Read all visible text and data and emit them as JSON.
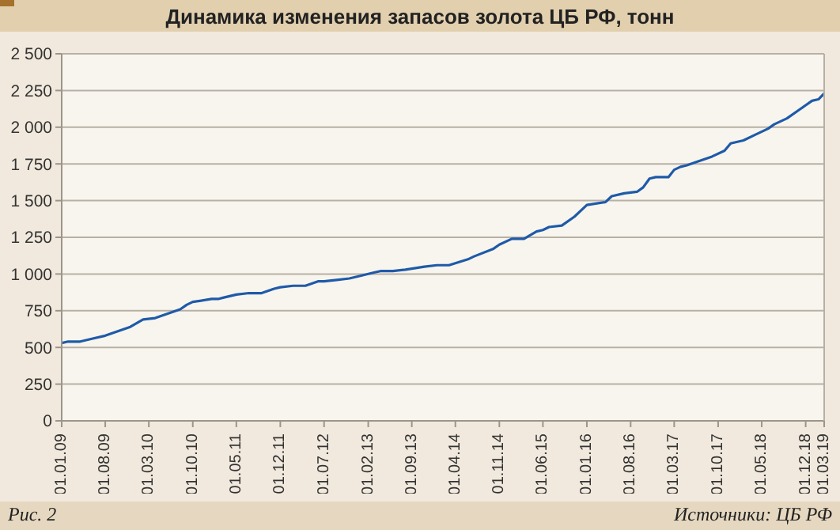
{
  "chart_data": {
    "type": "line",
    "title": "Динамика изменения запасов золота ЦБ РФ, тонн",
    "annotations": [
      "Рис. 2",
      "Источники: ЦБ РФ"
    ],
    "x": [
      "2009-01",
      "2009-02",
      "2009-04",
      "2009-06",
      "2009-08",
      "2009-10",
      "2009-12",
      "2010-02",
      "2010-04",
      "2010-06",
      "2010-08",
      "2010-09",
      "2010-10",
      "2011-01",
      "2011-02",
      "2011-03",
      "2011-05",
      "2011-07",
      "2011-09",
      "2011-11",
      "2011-12",
      "2012-02",
      "2012-04",
      "2012-06",
      "2012-07",
      "2012-09",
      "2012-11",
      "2013-01",
      "2013-03",
      "2013-04",
      "2013-06",
      "2013-08",
      "2013-11",
      "2014-01",
      "2014-03",
      "2014-06",
      "2014-07",
      "2014-10",
      "2014-11",
      "2015-01",
      "2015-03",
      "2015-05",
      "2015-06",
      "2015-07",
      "2015-09",
      "2015-11",
      "2016-01",
      "2016-04",
      "2016-05",
      "2016-07",
      "2016-09",
      "2016-10",
      "2016-11",
      "2016-12",
      "2017-02",
      "2017-03",
      "2017-04",
      "2017-05",
      "2017-07",
      "2017-09",
      "2017-11",
      "2017-12",
      "2018-02",
      "2018-04",
      "2018-06",
      "2018-07",
      "2018-09",
      "2018-11",
      "2019-01",
      "2019-02",
      "2019-03"
    ],
    "series": [
      {
        "color": "#1f5aa8",
        "values": [
          530,
          540,
          540,
          560,
          580,
          610,
          640,
          690,
          700,
          730,
          760,
          790,
          810,
          830,
          830,
          840,
          860,
          870,
          870,
          900,
          910,
          920,
          920,
          950,
          950,
          960,
          970,
          990,
          1010,
          1020,
          1020,
          1030,
          1050,
          1060,
          1060,
          1100,
          1120,
          1170,
          1200,
          1240,
          1240,
          1290,
          1300,
          1320,
          1330,
          1390,
          1470,
          1490,
          1530,
          1550,
          1560,
          1590,
          1650,
          1660,
          1660,
          1710,
          1730,
          1740,
          1770,
          1800,
          1840,
          1890,
          1910,
          1950,
          1990,
          2020,
          2060,
          2120,
          2180,
          2190,
          2230
        ]
      }
    ],
    "xlim": [
      "2009-01",
      "2019-03"
    ],
    "xticks": [
      {
        "value": "2009-01",
        "label": "01.01.09"
      },
      {
        "value": "2009-08",
        "label": "01.08.09"
      },
      {
        "value": "2010-03",
        "label": "01.03.10"
      },
      {
        "value": "2010-10",
        "label": "01.10.10"
      },
      {
        "value": "2011-05",
        "label": "01.05.11"
      },
      {
        "value": "2011-12",
        "label": "01.12.11"
      },
      {
        "value": "2012-07",
        "label": "01.07.12"
      },
      {
        "value": "2013-02",
        "label": "01.02.13"
      },
      {
        "value": "2013-09",
        "label": "01.09.13"
      },
      {
        "value": "2014-04",
        "label": "01.04.14"
      },
      {
        "value": "2014-11",
        "label": "01.11.14"
      },
      {
        "value": "2015-06",
        "label": "01.06.15"
      },
      {
        "value": "2016-01",
        "label": "01.01.16"
      },
      {
        "value": "2016-08",
        "label": "01.08.16"
      },
      {
        "value": "2017-03",
        "label": "01.03.17"
      },
      {
        "value": "2017-10",
        "label": "01.10.17"
      },
      {
        "value": "2018-05",
        "label": "01.05.18"
      },
      {
        "value": "2018-12",
        "label": "01.12.18"
      },
      {
        "value": "2019-03",
        "label": "01.03.19"
      }
    ],
    "ylim": [
      0,
      2500
    ],
    "yticks": [
      0,
      250,
      500,
      750,
      {
        "value": 1000,
        "label": "1 000"
      },
      {
        "value": 1250,
        "label": "1 250"
      },
      {
        "value": 1500,
        "label": "1 500"
      },
      {
        "value": 1750,
        "label": "1 750"
      },
      {
        "value": 2000,
        "label": "2 000"
      },
      {
        "value": 2250,
        "label": "2 250"
      },
      {
        "value": 2500,
        "label": "2 500"
      }
    ],
    "grid": "y",
    "legend": false,
    "marker": "none",
    "line_style": "solid"
  }
}
